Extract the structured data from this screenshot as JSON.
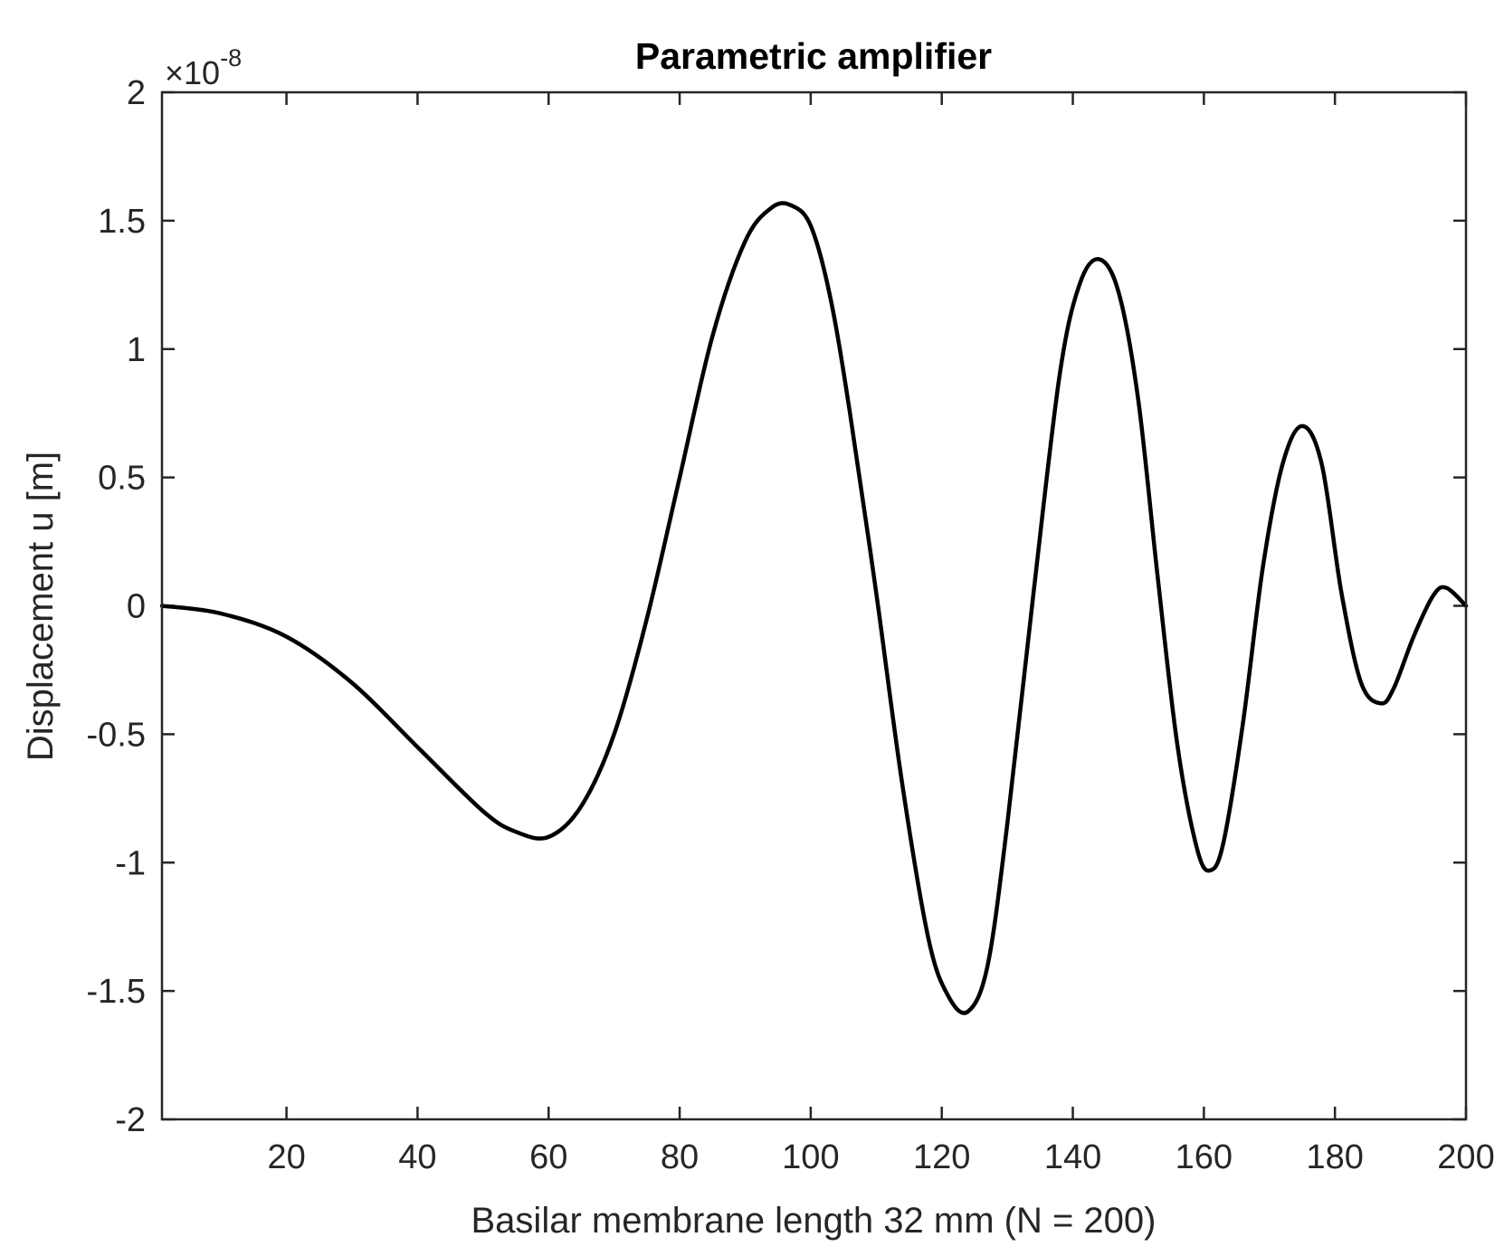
{
  "chart_data": {
    "type": "line",
    "title": "Parametric amplifier",
    "xlabel": "Basilar membrane length 32 mm  (N = 200)",
    "ylabel": "Displacement u [m]",
    "y_exponent": {
      "prefix": "×10",
      "power": "-8"
    },
    "xlim": [
      1,
      200
    ],
    "ylim": [
      -2,
      2
    ],
    "x_ticks": [
      20,
      40,
      60,
      80,
      100,
      120,
      140,
      160,
      180,
      200
    ],
    "x_tick_labels": [
      "20",
      "40",
      "60",
      "80",
      "100",
      "120",
      "140",
      "160",
      "180",
      "200"
    ],
    "y_ticks": [
      -2,
      -1.5,
      -1,
      -0.5,
      0,
      0.5,
      1,
      1.5,
      2
    ],
    "y_tick_labels": [
      "-2",
      "-1.5",
      "-1",
      "-0.5",
      "0",
      "0.5",
      "1",
      "1.5",
      "2"
    ],
    "grid": false,
    "line_color": "#000000",
    "series": [
      {
        "x": [
          1,
          10,
          20,
          30,
          40,
          50,
          55,
          60,
          65,
          70,
          75,
          80,
          85,
          90,
          94,
          97,
          100,
          103,
          106,
          110,
          114,
          118,
          121,
          124,
          127,
          130,
          134,
          138,
          141,
          144,
          147,
          150,
          153,
          156,
          159,
          161,
          163,
          166,
          169,
          172,
          175,
          178,
          181,
          184,
          187,
          189,
          192,
          195,
          197,
          200
        ],
        "y": [
          0,
          -0.03,
          -0.12,
          -0.3,
          -0.55,
          -0.8,
          -0.88,
          -0.9,
          -0.78,
          -0.5,
          -0.05,
          0.5,
          1.05,
          1.42,
          1.55,
          1.56,
          1.48,
          1.2,
          0.75,
          0.05,
          -0.7,
          -1.3,
          -1.52,
          -1.58,
          -1.4,
          -0.85,
          0.05,
          0.9,
          1.25,
          1.35,
          1.22,
          0.8,
          0.1,
          -0.55,
          -0.95,
          -1.03,
          -0.92,
          -0.45,
          0.15,
          0.55,
          0.7,
          0.55,
          0.05,
          -0.3,
          -0.38,
          -0.32,
          -0.12,
          0.04,
          0.07,
          0
        ]
      }
    ]
  }
}
